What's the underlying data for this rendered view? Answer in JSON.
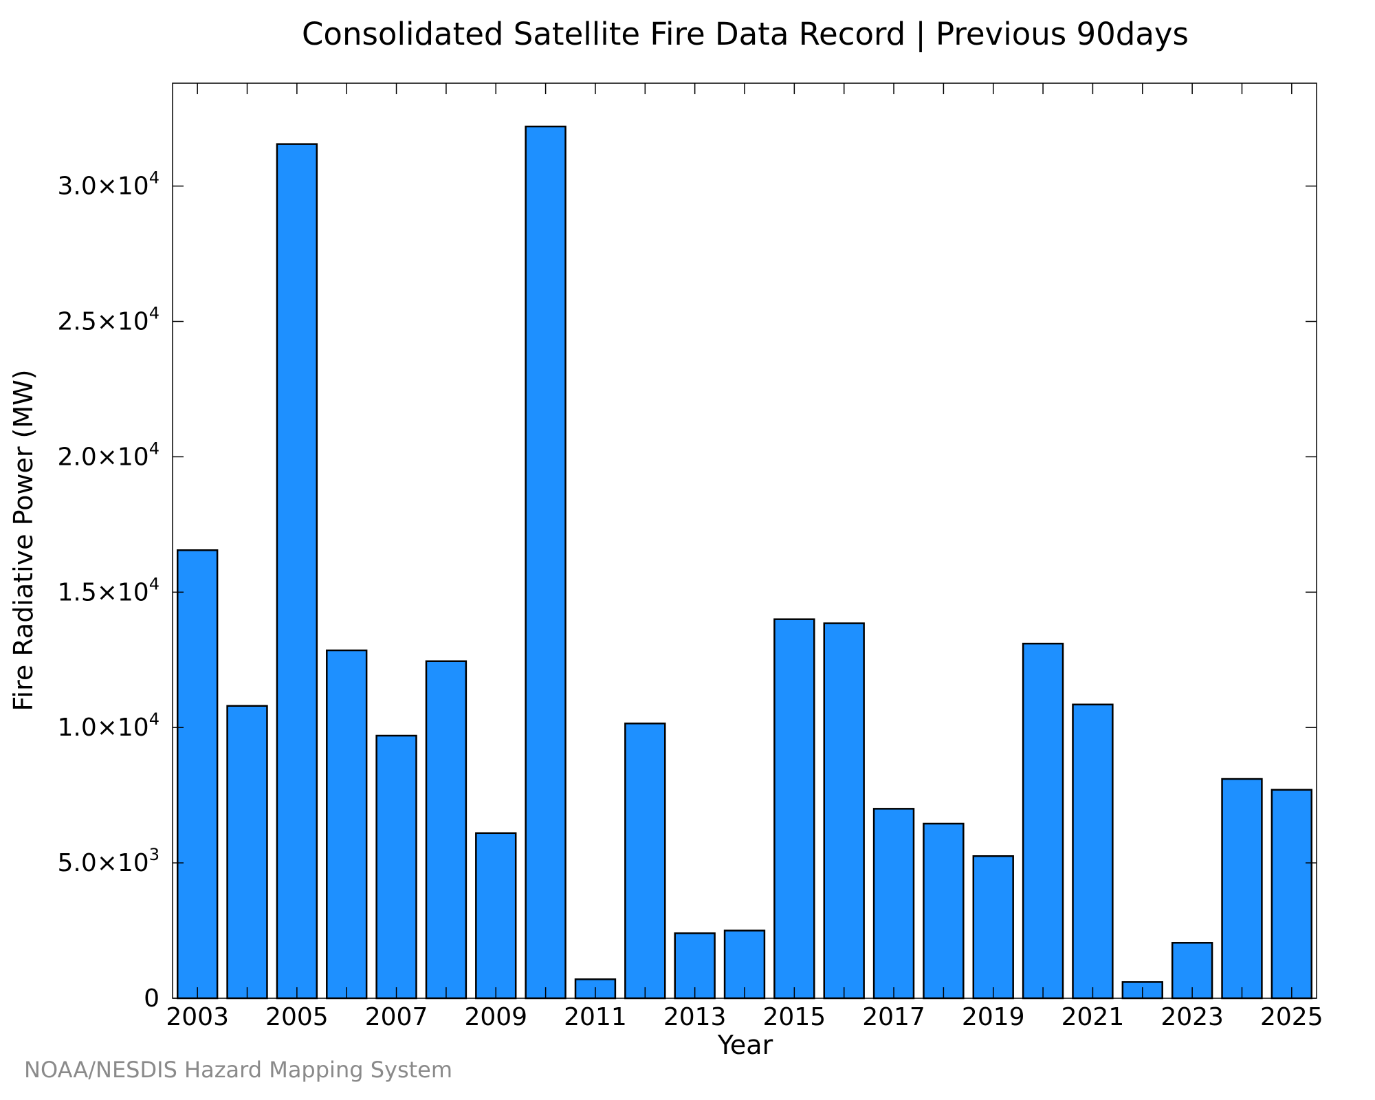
{
  "colors": {
    "bar_fill": "#1e90ff",
    "bar_stroke": "#000000",
    "axis": "#000000",
    "credit": "#8a8a8a"
  },
  "credit": "NOAA/NESDIS Hazard Mapping System",
  "chart_data": {
    "type": "bar",
    "title": "Consolidated Satellite Fire Data Record | Previous 90days",
    "xlabel": "Year",
    "ylabel": "Fire Radiative Power (MW)",
    "categories": [
      "2003",
      "2004",
      "2005",
      "2006",
      "2007",
      "2008",
      "2009",
      "2010",
      "2011",
      "2012",
      "2013",
      "2014",
      "2015",
      "2016",
      "2017",
      "2018",
      "2019",
      "2020",
      "2021",
      "2022",
      "2023",
      "2024",
      "2025"
    ],
    "values": [
      16550,
      10800,
      31550,
      12850,
      9700,
      12450,
      6100,
      32200,
      700,
      10150,
      2400,
      2500,
      14000,
      13850,
      7000,
      6450,
      5250,
      13100,
      10850,
      600,
      2050,
      8100,
      7700
    ],
    "ylim": [
      0,
      33800
    ],
    "xlim": [
      2002.5,
      2025.5
    ],
    "x_tick_labels": [
      "2003",
      "2005",
      "2007",
      "2009",
      "2011",
      "2013",
      "2015",
      "2017",
      "2019",
      "2021",
      "2023",
      "2025"
    ],
    "y_ticks": [
      {
        "value": 0,
        "mantissa": "0",
        "exponent": ""
      },
      {
        "value": 5000,
        "mantissa": "5.0×10",
        "exponent": "3"
      },
      {
        "value": 10000,
        "mantissa": "1.0×10",
        "exponent": "4"
      },
      {
        "value": 15000,
        "mantissa": "1.5×10",
        "exponent": "4"
      },
      {
        "value": 20000,
        "mantissa": "2.0×10",
        "exponent": "4"
      },
      {
        "value": 25000,
        "mantissa": "2.5×10",
        "exponent": "4"
      },
      {
        "value": 30000,
        "mantissa": "3.0×10",
        "exponent": "4"
      }
    ],
    "grid": false,
    "legend": "none"
  }
}
